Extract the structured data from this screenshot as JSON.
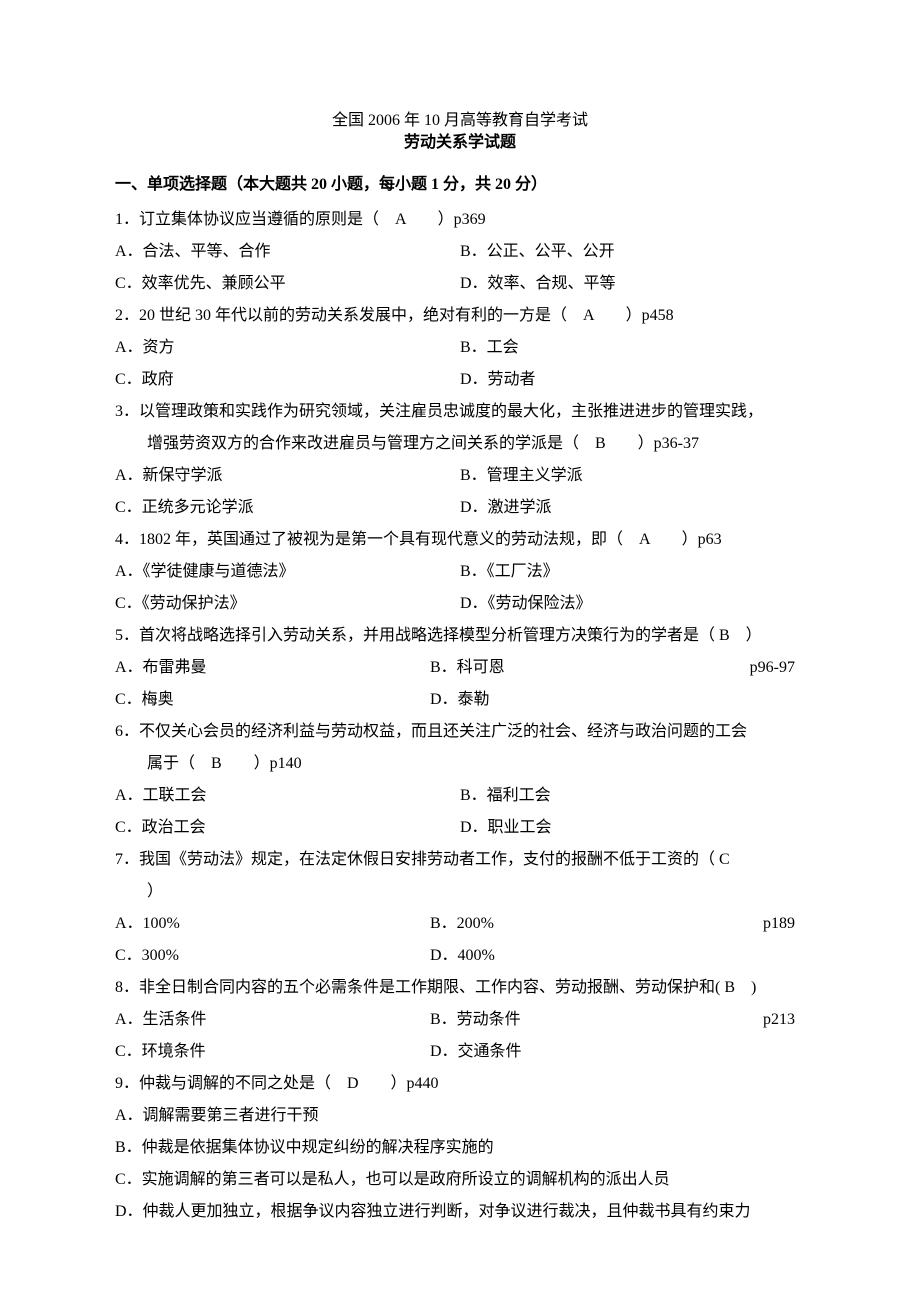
{
  "title_line1": "全国 2006 年 10 月高等教育自学考试",
  "title_line2": "劳动关系学试题",
  "section1_header": "一、单项选择题（本大题共 20 小题，每小题 1 分，共 20 分）",
  "questions": [
    {
      "stem": "1．订立集体协议应当遵循的原则是（　A　　）p369",
      "layout": "two-col",
      "opts": [
        "A．合法、平等、合作",
        "B．公正、公平、公开",
        "C．效率优先、兼顾公平",
        "D．效率、合规、平等"
      ]
    },
    {
      "stem": "2．20 世纪 30 年代以前的劳动关系发展中，绝对有利的一方是（　A　　）p458",
      "layout": "two-col",
      "opts": [
        "A．资方",
        "B．工会",
        "C．政府",
        "D．劳动者"
      ]
    },
    {
      "stem": "3．以管理政策和实践作为研究领域，关注雇员忠诚度的最大化，主张推进进步的管理实践，",
      "cont": "增强劳资双方的合作来改进雇员与管理方之间关系的学派是（　B　　）p36-37",
      "layout": "two-col",
      "opts": [
        "A．新保守学派",
        "B．管理主义学派",
        "C．正统多元论学派",
        "D．激进学派"
      ]
    },
    {
      "stem": "4．1802 年，英国通过了被视为是第一个具有现代意义的劳动法规，即（　A　　）p63",
      "layout": "two-col",
      "opts": [
        "A．《学徒健康与道德法》",
        "B．《工厂法》",
        "C．《劳动保护法》",
        "D．《劳动保险法》"
      ]
    },
    {
      "stem": "5．首次将战略选择引入劳动关系，并用战略选择模型分析管理方决策行为的学者是（ B　）",
      "layout": "two-col-ref",
      "opts": [
        "A．布雷弗曼",
        "B．科可恩",
        "C．梅奥",
        "D．泰勒"
      ],
      "ref": "p96-97"
    },
    {
      "stem": "6．不仅关心会员的经济利益与劳动权益，而且还关注广泛的社会、经济与政治问题的工会",
      "cont": "属于（　B　　）p140",
      "layout": "two-col",
      "opts": [
        "A．工联工会",
        "B．福利工会",
        "C．政治工会",
        "D．职业工会"
      ]
    },
    {
      "stem": "7．我国《劳动法》规定，在法定休假日安排劳动者工作，支付的报酬不低于工资的（ C",
      "cont": "）",
      "layout": "two-col-ref",
      "opts": [
        "A．100%",
        "B．200%",
        "C．300%",
        "D．400%"
      ],
      "ref": "p189"
    },
    {
      "stem": "8．非全日制合同内容的五个必需条件是工作期限、工作内容、劳动报酬、劳动保护和( B　)",
      "layout": "two-col-ref",
      "opts": [
        "A．生活条件",
        "B．劳动条件",
        "C．环境条件",
        "D．交通条件"
      ],
      "ref": "p213"
    },
    {
      "stem": "9．仲裁与调解的不同之处是（　D　　）p440",
      "layout": "one-col",
      "opts": [
        "A．调解需要第三者进行干预",
        "B．仲裁是依据集体协议中规定纠纷的解决程序实施的",
        "C．实施调解的第三者可以是私人，也可以是政府所设立的调解机构的派出人员",
        "D．仲裁人更加独立，根据争议内容独立进行判断，对争议进行裁决，且仲裁书具有约束力"
      ]
    }
  ]
}
